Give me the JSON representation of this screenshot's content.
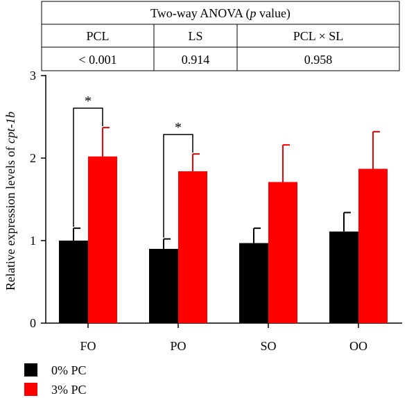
{
  "anova_table": {
    "title_prefix": "Two-way ANOVA (",
    "title_italic": "p",
    "title_suffix": " value)",
    "headers": [
      "PCL",
      "LS",
      "PCL × SL"
    ],
    "values": [
      "< 0.001",
      "0.914",
      "0.958"
    ]
  },
  "chart_data": {
    "type": "bar",
    "categories": [
      "FO",
      "PO",
      "SO",
      "OO"
    ],
    "series": [
      {
        "name": "0% PC",
        "color": "#000000",
        "values": [
          1.0,
          0.9,
          0.97,
          1.11
        ],
        "errors": [
          0.15,
          0.12,
          0.18,
          0.23
        ]
      },
      {
        "name": "3% PC",
        "color": "#ff0000",
        "values": [
          2.02,
          1.84,
          1.71,
          1.87
        ],
        "errors": [
          0.35,
          0.21,
          0.45,
          0.45
        ]
      }
    ],
    "ylabel_prefix": "Relative expression levels of ",
    "ylabel_italic": "cpt-1b",
    "ylim": [
      0,
      3
    ],
    "yticks": [
      "0",
      "1",
      "2",
      "3"
    ],
    "significance": [
      {
        "category": "FO",
        "label": "*"
      },
      {
        "category": "PO",
        "label": "*"
      }
    ],
    "legend_position": "bottom-left"
  }
}
